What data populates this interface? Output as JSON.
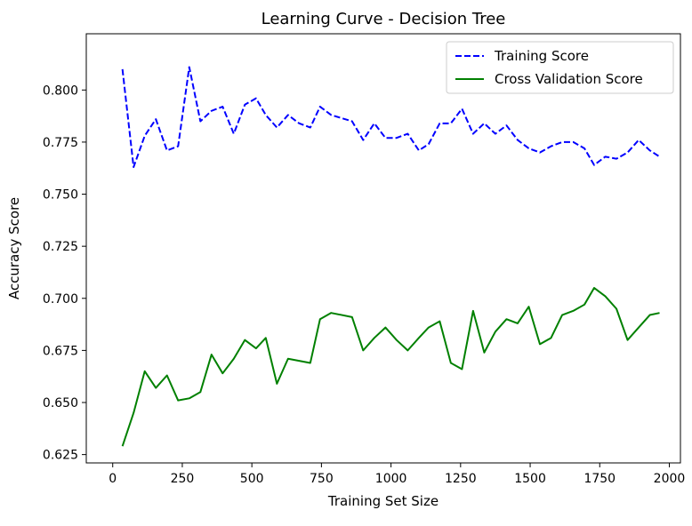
{
  "chart_data": {
    "type": "line",
    "title": "Learning Curve - Decision Tree",
    "xlabel": "Training Set Size",
    "ylabel": "Accuracy Score",
    "xlim": [
      -95,
      2040
    ],
    "ylim": [
      0.621,
      0.827
    ],
    "xticks": [
      0,
      250,
      500,
      750,
      1000,
      1250,
      1500,
      1750,
      2000
    ],
    "yticks": [
      0.625,
      0.65,
      0.675,
      0.7,
      0.725,
      0.75,
      0.775,
      0.8
    ],
    "x_tick_labels": [
      "0",
      "250",
      "500",
      "750",
      "1000",
      "1250",
      "1500",
      "1750",
      "2000"
    ],
    "y_tick_labels": [
      "0.625",
      "0.650",
      "0.675",
      "0.700",
      "0.725",
      "0.750",
      "0.775",
      "0.800"
    ],
    "grid": false,
    "legend_position": "top-right",
    "x": [
      35,
      75,
      115,
      155,
      195,
      235,
      275,
      315,
      355,
      395,
      435,
      475,
      515,
      550,
      590,
      630,
      670,
      710,
      745,
      785,
      860,
      900,
      940,
      980,
      1020,
      1060,
      1100,
      1135,
      1175,
      1215,
      1255,
      1295,
      1335,
      1375,
      1415,
      1455,
      1495,
      1535,
      1575,
      1615,
      1655,
      1695,
      1730,
      1770,
      1810,
      1850,
      1890,
      1930,
      1965
    ],
    "series": [
      {
        "name": "Training Score",
        "color": "#0000ff",
        "style": "dashed",
        "values": [
          0.81,
          0.763,
          0.778,
          0.786,
          0.771,
          0.773,
          0.811,
          0.785,
          0.79,
          0.792,
          0.779,
          0.793,
          0.796,
          0.788,
          0.782,
          0.788,
          0.784,
          0.782,
          0.792,
          0.788,
          0.785,
          0.776,
          0.784,
          0.777,
          0.777,
          0.779,
          0.771,
          0.774,
          0.784,
          0.784,
          0.791,
          0.779,
          0.784,
          0.779,
          0.783,
          0.776,
          0.772,
          0.77,
          0.773,
          0.775,
          0.775,
          0.772,
          0.764,
          0.768,
          0.767,
          0.77,
          0.776,
          0.771,
          0.768
        ]
      },
      {
        "name": "Cross Validation Score",
        "color": "#008000",
        "style": "solid",
        "values": [
          0.629,
          0.645,
          0.665,
          0.657,
          0.663,
          0.651,
          0.652,
          0.655,
          0.673,
          0.664,
          0.671,
          0.68,
          0.676,
          0.681,
          0.659,
          0.671,
          0.67,
          0.669,
          0.69,
          0.693,
          0.691,
          0.675,
          0.681,
          0.686,
          0.68,
          0.675,
          0.681,
          0.686,
          0.689,
          0.669,
          0.666,
          0.694,
          0.674,
          0.684,
          0.69,
          0.688,
          0.696,
          0.678,
          0.681,
          0.692,
          0.694,
          0.697,
          0.705,
          0.701,
          0.695,
          0.68,
          0.686,
          0.692,
          0.693
        ]
      }
    ]
  }
}
